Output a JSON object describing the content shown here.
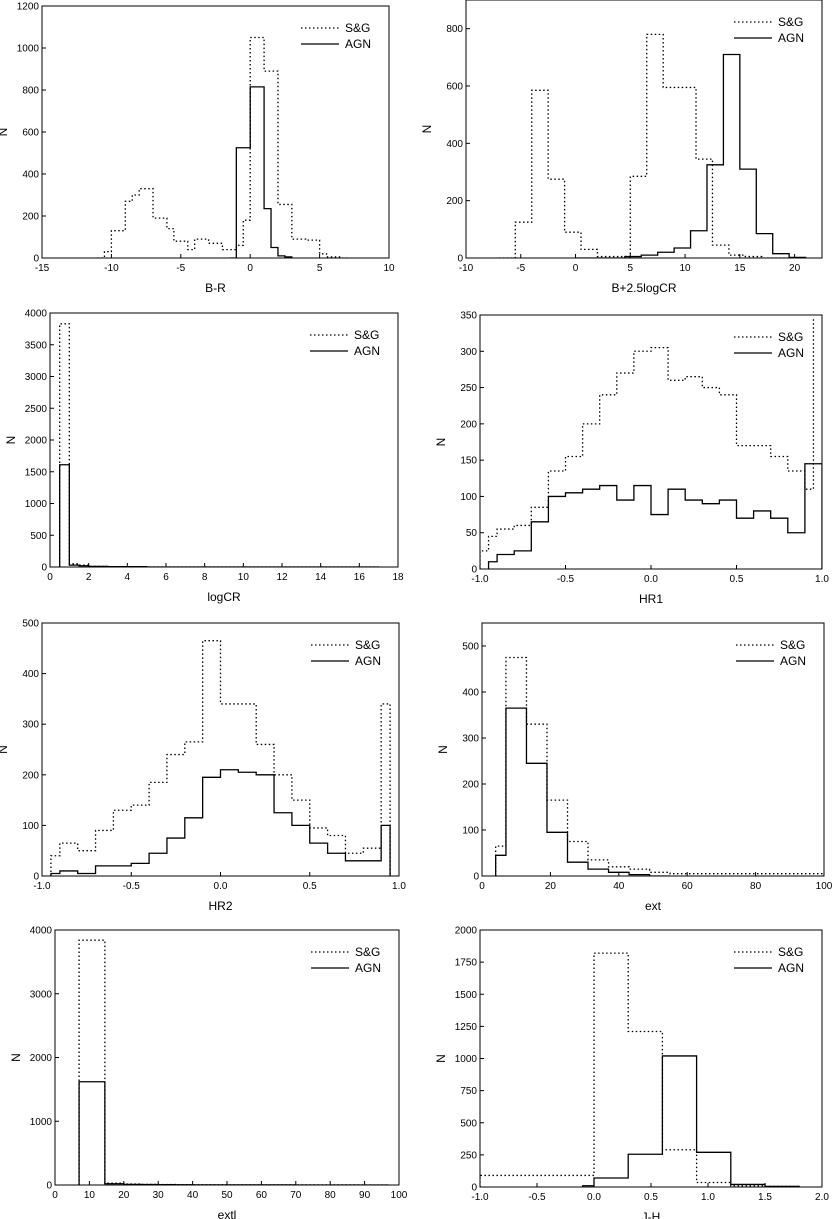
{
  "legend_labels": [
    "S&G",
    "AGN"
  ],
  "chart_data": [
    {
      "type": "step-histogram",
      "xlabel": "B-R",
      "ylabel": "N",
      "xlim": [
        -15,
        10
      ],
      "ylim": [
        0,
        1200
      ],
      "xticks": [
        -15,
        -10,
        -5,
        0,
        5,
        10
      ],
      "yticks": [
        0,
        200,
        400,
        600,
        800,
        1000,
        1200
      ],
      "legend": "top-right",
      "series": [
        {
          "name": "S&G",
          "style": "dotted",
          "x": [
            -11.0,
            -10.5,
            -10.0,
            -9.5,
            -9.0,
            -8.5,
            -8.0,
            -7.5,
            -7.0,
            -6.5,
            -6.0,
            -5.5,
            -5.0,
            -4.5,
            -4.0,
            -3.5,
            -3.0,
            -2.5,
            -2.0,
            -1.5,
            -1.0,
            -0.5,
            0.0,
            0.5,
            1.0,
            1.5,
            2.0,
            2.5,
            3.0,
            3.5,
            4.0,
            4.5,
            5.0,
            5.5,
            6.0,
            6.5,
            7.0
          ],
          "values": [
            0,
            30,
            130,
            130,
            270,
            300,
            330,
            330,
            190,
            190,
            140,
            80,
            80,
            40,
            90,
            90,
            70,
            70,
            40,
            40,
            60,
            180,
            1050,
            1050,
            890,
            890,
            255,
            255,
            90,
            90,
            85,
            85,
            20,
            5,
            5,
            0
          ]
        },
        {
          "name": "AGN",
          "style": "solid",
          "x": [
            -1.5,
            -1.0,
            -0.5,
            0.0,
            0.5,
            1.0,
            1.5,
            2.0,
            2.5,
            3.0
          ],
          "values": [
            0,
            525,
            525,
            815,
            815,
            235,
            50,
            10,
            5
          ]
        }
      ]
    },
    {
      "type": "step-histogram",
      "xlabel": "B+2.5logCR",
      "ylabel": "N",
      "xlim": [
        -10,
        22.5
      ],
      "ylim": [
        0,
        900
      ],
      "xticks": [
        -10,
        -5,
        0,
        5,
        10,
        15,
        20
      ],
      "yticks": [
        0,
        200,
        400,
        600,
        800
      ],
      "legend": "top-right",
      "series": [
        {
          "name": "S&G",
          "style": "dotted",
          "x": [
            -7,
            -5.5,
            -4.0,
            -2.5,
            -1.0,
            0.5,
            2.0,
            3.5,
            5.0,
            6.5,
            8.0,
            9.5,
            11.0,
            12.5,
            14.0,
            15.5,
            17.0,
            18.5,
            20.0
          ],
          "values": [
            0,
            125,
            585,
            275,
            90,
            30,
            5,
            5,
            285,
            780,
            595,
            595,
            345,
            45,
            10,
            5,
            0,
            0
          ]
        },
        {
          "name": "AGN",
          "style": "solid",
          "x": [
            0,
            4.5,
            6.0,
            7.5,
            9.0,
            10.5,
            12.0,
            13.5,
            15.0,
            16.5,
            18.0,
            19.5,
            21.0
          ],
          "values": [
            0,
            5,
            10,
            20,
            35,
            95,
            325,
            710,
            310,
            85,
            15,
            2
          ]
        }
      ]
    },
    {
      "type": "step-histogram",
      "xlabel": "logCR",
      "ylabel": "N",
      "xlim": [
        0,
        18
      ],
      "ylim": [
        0,
        4000
      ],
      "xticks": [
        0,
        2,
        4,
        6,
        8,
        10,
        12,
        14,
        16,
        18
      ],
      "yticks": [
        0,
        500,
        1000,
        1500,
        2000,
        2500,
        3000,
        3500,
        4000
      ],
      "legend": "top-right",
      "series": [
        {
          "name": "S&G",
          "style": "dotted",
          "x": [
            0.5,
            1.0,
            1.5,
            2.0,
            3.0,
            5.0,
            10.0,
            17.0
          ],
          "values": [
            3830,
            50,
            30,
            10,
            5,
            0,
            0
          ]
        },
        {
          "name": "AGN",
          "style": "solid",
          "x": [
            0.5,
            1.0,
            1.5,
            2.0,
            3.0,
            5.0,
            10.0,
            17.0
          ],
          "values": [
            1610,
            30,
            20,
            10,
            5,
            0,
            0
          ]
        }
      ]
    },
    {
      "type": "step-histogram",
      "xlabel": "HR1",
      "ylabel": "N",
      "xlim": [
        -1.0,
        1.0
      ],
      "ylim": [
        0,
        350
      ],
      "xticks": [
        -1.0,
        -0.5,
        0.0,
        0.5,
        1.0
      ],
      "yticks": [
        0,
        50,
        100,
        150,
        200,
        250,
        300,
        350
      ],
      "legend": "top-right",
      "series": [
        {
          "name": "S&G",
          "style": "dotted",
          "x": [
            -1.0,
            -0.95,
            -0.9,
            -0.8,
            -0.7,
            -0.6,
            -0.5,
            -0.4,
            -0.3,
            -0.2,
            -0.1,
            0.0,
            0.1,
            0.2,
            0.3,
            0.4,
            0.5,
            0.6,
            0.7,
            0.8,
            0.9,
            0.95
          ],
          "values": [
            25,
            45,
            55,
            60,
            85,
            135,
            155,
            200,
            240,
            270,
            300,
            305,
            260,
            265,
            250,
            240,
            170,
            170,
            155,
            135,
            110,
            345
          ]
        },
        {
          "name": "AGN",
          "style": "solid",
          "x": [
            -0.95,
            -0.9,
            -0.8,
            -0.7,
            -0.6,
            -0.5,
            -0.4,
            -0.3,
            -0.2,
            -0.1,
            0.0,
            0.1,
            0.2,
            0.3,
            0.4,
            0.5,
            0.6,
            0.7,
            0.8,
            0.9,
            0.95,
            1.0
          ],
          "values": [
            10,
            20,
            25,
            65,
            100,
            105,
            110,
            115,
            95,
            115,
            75,
            110,
            95,
            90,
            95,
            70,
            80,
            70,
            50,
            145,
            145
          ]
        }
      ]
    },
    {
      "type": "step-histogram",
      "xlabel": "HR2",
      "ylabel": "N",
      "xlim": [
        -1.0,
        1.0
      ],
      "ylim": [
        0,
        500
      ],
      "xticks": [
        -1.0,
        -0.5,
        0.0,
        0.5,
        1.0
      ],
      "yticks": [
        0,
        100,
        200,
        300,
        400,
        500
      ],
      "legend": "top-right",
      "series": [
        {
          "name": "S&G",
          "style": "dotted",
          "x": [
            -0.95,
            -0.9,
            -0.8,
            -0.7,
            -0.6,
            -0.5,
            -0.4,
            -0.3,
            -0.2,
            -0.1,
            0.0,
            0.1,
            0.2,
            0.3,
            0.4,
            0.5,
            0.6,
            0.7,
            0.8,
            0.9,
            0.95
          ],
          "values": [
            40,
            65,
            50,
            90,
            130,
            140,
            185,
            240,
            265,
            465,
            340,
            340,
            260,
            200,
            150,
            95,
            80,
            45,
            55,
            340
          ]
        },
        {
          "name": "AGN",
          "style": "solid",
          "x": [
            -0.95,
            -0.9,
            -0.8,
            -0.7,
            -0.6,
            -0.5,
            -0.4,
            -0.3,
            -0.2,
            -0.1,
            0.0,
            0.1,
            0.2,
            0.3,
            0.4,
            0.5,
            0.6,
            0.7,
            0.8,
            0.9,
            0.95
          ],
          "values": [
            5,
            10,
            5,
            20,
            20,
            25,
            45,
            75,
            115,
            195,
            210,
            205,
            200,
            125,
            100,
            65,
            45,
            30,
            30,
            100
          ]
        }
      ]
    },
    {
      "type": "step-histogram",
      "xlabel": "ext",
      "ylabel": "N",
      "xlim": [
        0,
        100
      ],
      "ylim": [
        0,
        550
      ],
      "xticks": [
        0,
        20,
        40,
        60,
        80,
        100
      ],
      "yticks": [
        0,
        100,
        200,
        300,
        400,
        500
      ],
      "legend": "top-right",
      "series": [
        {
          "name": "S&G",
          "style": "dotted",
          "x": [
            4,
            7,
            13,
            19,
            25,
            31,
            37,
            43,
            49,
            55,
            61,
            100
          ],
          "values": [
            65,
            475,
            330,
            165,
            75,
            35,
            20,
            15,
            8,
            5,
            5
          ]
        },
        {
          "name": "AGN",
          "style": "solid",
          "x": [
            4,
            7,
            13,
            19,
            25,
            31,
            37,
            43,
            49,
            55
          ],
          "values": [
            45,
            365,
            245,
            95,
            30,
            15,
            8,
            3,
            0
          ]
        }
      ]
    },
    {
      "type": "step-histogram",
      "xlabel": "extl",
      "ylabel": "N",
      "xlim": [
        0,
        100
      ],
      "ylim": [
        0,
        4000
      ],
      "xticks": [
        0,
        10,
        20,
        30,
        40,
        50,
        60,
        70,
        80,
        90,
        100
      ],
      "yticks": [
        0,
        1000,
        2000,
        3000,
        4000
      ],
      "legend": "top-right",
      "series": [
        {
          "name": "S&G",
          "style": "dotted",
          "x": [
            7,
            14.5,
            20,
            25,
            30,
            35,
            40,
            50,
            60,
            70,
            80,
            90,
            97
          ],
          "values": [
            3840,
            30,
            15,
            10,
            8,
            5,
            3,
            2,
            1,
            1,
            1,
            0
          ]
        },
        {
          "name": "AGN",
          "style": "solid",
          "x": [
            7,
            14.5,
            20,
            25,
            30,
            35,
            40,
            50,
            60,
            70,
            80,
            90,
            97
          ],
          "values": [
            1620,
            20,
            10,
            8,
            5,
            3,
            2,
            1,
            1,
            0,
            0,
            0
          ]
        }
      ]
    },
    {
      "type": "step-histogram",
      "xlabel": "J-H",
      "ylabel": "N",
      "xlim": [
        -1.0,
        2.0
      ],
      "ylim": [
        0,
        2000
      ],
      "xticks": [
        -1.0,
        -0.5,
        0.0,
        0.5,
        1.0,
        1.5,
        2.0
      ],
      "yticks": [
        0,
        250,
        500,
        750,
        1000,
        1250,
        1500,
        1750,
        2000
      ],
      "legend": "top-right",
      "series": [
        {
          "name": "S&G",
          "style": "dotted",
          "x": [
            -1.0,
            0.0,
            0.3,
            0.6,
            0.9,
            1.2,
            1.5,
            1.8
          ],
          "values": [
            90,
            1820,
            1210,
            290,
            35,
            10,
            5
          ]
        },
        {
          "name": "AGN",
          "style": "solid",
          "x": [
            -0.1,
            0.0,
            0.3,
            0.6,
            0.9,
            1.2,
            1.5,
            1.8
          ],
          "values": [
            10,
            70,
            255,
            1020,
            270,
            20,
            5
          ]
        }
      ]
    }
  ]
}
